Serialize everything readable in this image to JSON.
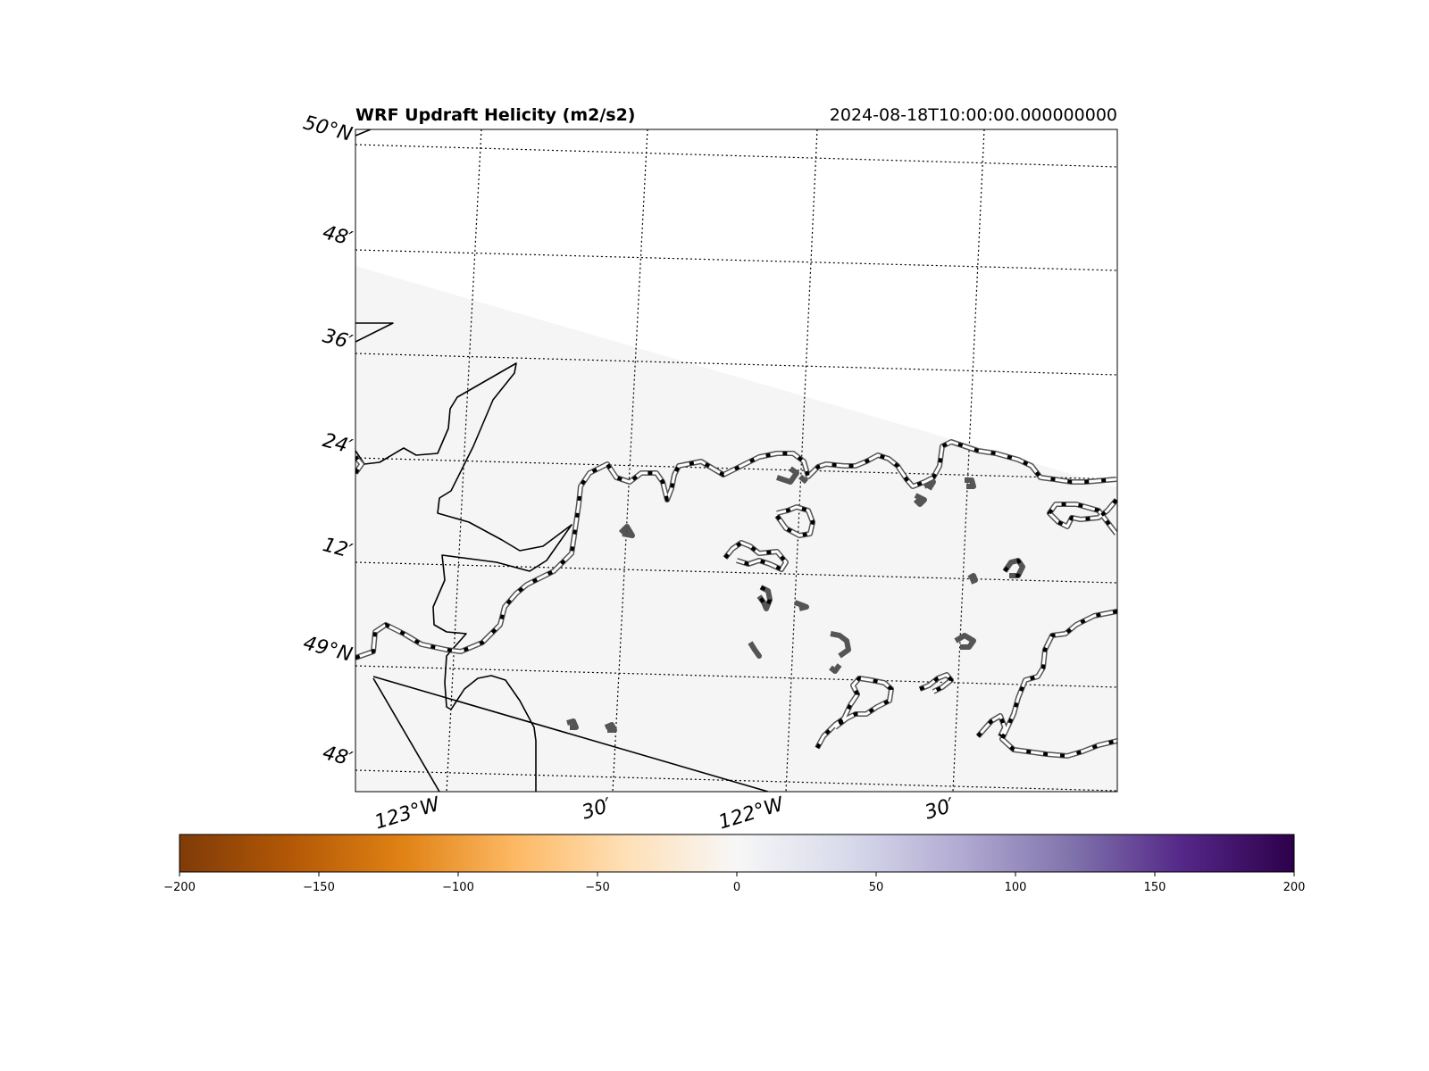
{
  "map": {
    "title": "WRF Updraft Helicity (m2/s2)",
    "timestamp": "2024-08-18T10:00:00.000000000",
    "lat_labels": [
      "50°N",
      "48′",
      "36′",
      "24′",
      "12′",
      "49°N",
      "48′"
    ],
    "lon_labels": [
      "123°W",
      "30′",
      "122°W",
      "30′"
    ],
    "background_color": "#f5f5f5",
    "coastline_color": "#000000",
    "gridline_style": "dotted"
  },
  "colorbar": {
    "colormap": "PuOr",
    "min": -200,
    "max": 200,
    "ticks": [
      "−200",
      "−150",
      "−100",
      "−50",
      "0",
      "50",
      "100",
      "150",
      "200"
    ],
    "colors": [
      "#7f3b08",
      "#b35806",
      "#e08214",
      "#fdb863",
      "#fee0b6",
      "#f7f7f7",
      "#d8daeb",
      "#b2abd2",
      "#8073ac",
      "#542788",
      "#2d004b"
    ]
  }
}
